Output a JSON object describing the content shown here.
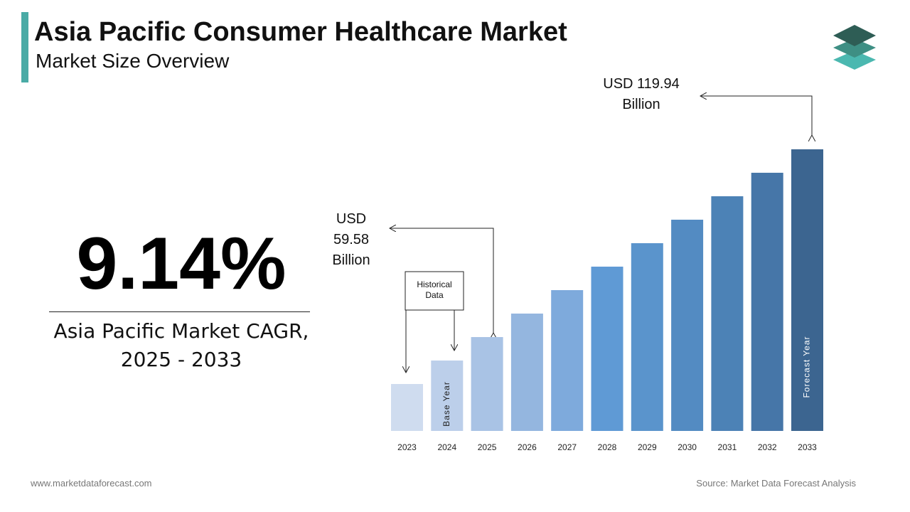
{
  "chart_data": {
    "type": "bar",
    "title": "Asia Pacific Consumer Healthcare Market",
    "subtitle": "Market Size Overview",
    "categories": [
      "2023",
      "2024",
      "2025",
      "2026",
      "2027",
      "2028",
      "2029",
      "2030",
      "2031",
      "2032",
      "2033"
    ],
    "values": [
      44.49,
      52.04,
      59.58,
      67.13,
      74.67,
      82.22,
      89.76,
      97.31,
      104.85,
      112.4,
      119.94
    ],
    "value_labels": [
      null,
      null,
      "USD 59.58 Billion",
      null,
      null,
      null,
      null,
      null,
      null,
      null,
      "USD 119.94 Billion"
    ],
    "colors": [
      "#cfdcef",
      "#bccfea",
      "#a9c3e5",
      "#94b6df",
      "#7eaadc",
      "#5f9ad5",
      "#5a94cc",
      "#538bc2",
      "#4c82b6",
      "#4676a8",
      "#3c6590"
    ],
    "ylim": [
      29.4,
      120
    ],
    "bar_annotations": {
      "1": "Base Year",
      "10": "Forecast Year"
    },
    "historical_label": "Historical Data",
    "cagr": "9.14%",
    "cagr_label": [
      "Asia Pacific Market CAGR,",
      "2025 - 2033"
    ],
    "footer_left": "www.marketdataforecast.com",
    "source": "Source: Market Data Forecast Analysis"
  }
}
